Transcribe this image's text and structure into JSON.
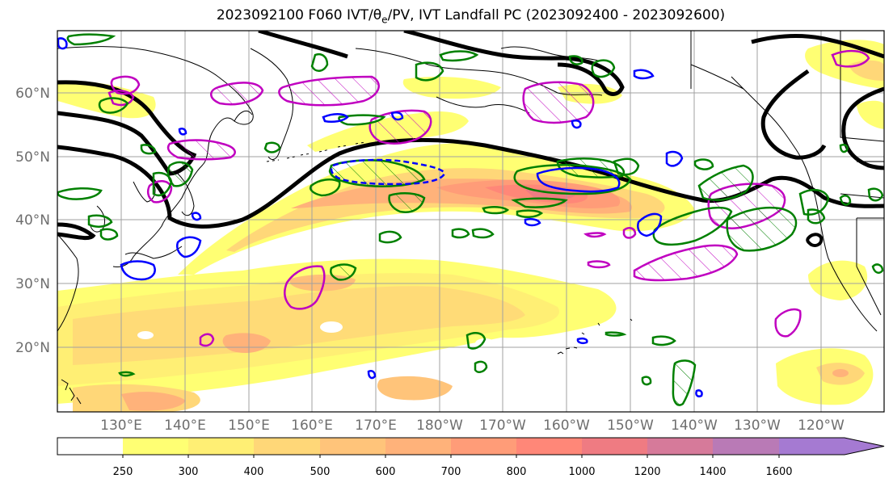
{
  "title": {
    "prefix": "2023092100 F060 IVT/",
    "theta": "θ",
    "theta_sub": "e",
    "suffix": "/PV, IVT Landfall PC (2023092400 - 2023092600)"
  },
  "map": {
    "lat_labels": [
      "60°N",
      "50°N",
      "40°N",
      "30°N",
      "20°N"
    ],
    "lon_labels": [
      "130°E",
      "140°E",
      "150°E",
      "160°E",
      "170°E",
      "180°W",
      "170°W",
      "160°W",
      "150°W",
      "140°W",
      "130°W",
      "120°W"
    ],
    "colors": {
      "frame": "#000000",
      "gridline": "#a0a0a0",
      "coastline": "#000000",
      "pv_contour": "#000000",
      "theta_e_positive": "#008000",
      "theta_e_negative": "#0000ff",
      "landfall_pc": "#c000c0"
    },
    "layers": [
      "ivt-shading",
      "pv-contours",
      "theta-e-contours",
      "landfall-pc-contours",
      "coastlines",
      "gridlines"
    ]
  },
  "colorbar": {
    "levels": [
      "250",
      "300",
      "400",
      "500",
      "600",
      "700",
      "800",
      "1000",
      "1200",
      "1400",
      "1600"
    ],
    "colors": [
      "#ffffff",
      "#ffff73",
      "#ffef74",
      "#ffd778",
      "#ffc47a",
      "#ffb27a",
      "#ff9c78",
      "#ff8778",
      "#ef7b82",
      "#d67a9a",
      "#b97ab6",
      "#a57ad2"
    ],
    "extend": "max"
  }
}
